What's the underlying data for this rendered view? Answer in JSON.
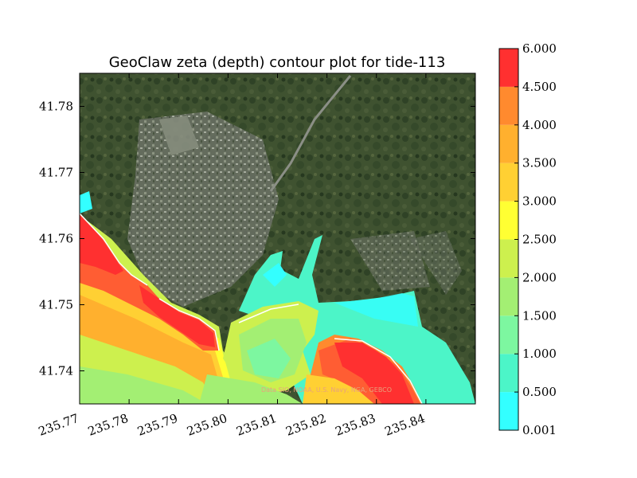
{
  "chart_data": {
    "type": "heatmap",
    "title": "GeoClaw zeta (depth) contour plot for tide-113",
    "xlabel": "",
    "ylabel": "",
    "x_ticks": [
      "235.77",
      "235.78",
      "235.79",
      "235.80",
      "235.81",
      "235.82",
      "235.83",
      "235.84"
    ],
    "y_ticks": [
      "41.74",
      "41.75",
      "41.76",
      "41.77",
      "41.78"
    ],
    "xlim": [
      235.77,
      235.85
    ],
    "ylim": [
      41.735,
      41.785
    ],
    "basemap_credit": "Data SIO, NOAA, U.S. Navy, NGA, GEBCO",
    "colorbar": {
      "levels": [
        0.001,
        0.5,
        1.0,
        1.5,
        2.0,
        2.5,
        3.0,
        3.5,
        4.0,
        4.5,
        6.0
      ],
      "tick_labels": [
        "0.001",
        "0.500",
        "1.000",
        "1.500",
        "2.000",
        "2.500",
        "3.000",
        "3.500",
        "4.000",
        "4.500",
        "6.000"
      ],
      "colors": [
        "#33ffff",
        "#4cf5c8",
        "#7df7a0",
        "#a3ef73",
        "#cdf04e",
        "#ffff33",
        "#ffd033",
        "#ffb02e",
        "#ff8a2e",
        "#ff5d33"
      ],
      "top_color": "#ff3030"
    }
  }
}
